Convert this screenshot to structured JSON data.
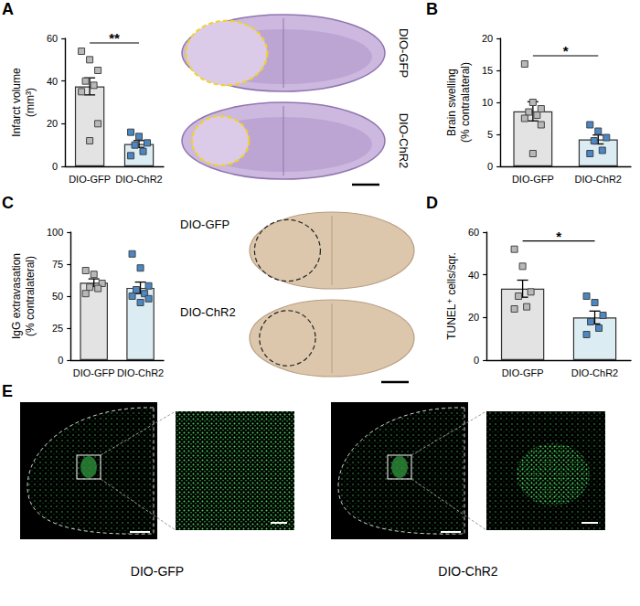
{
  "chart_data": [
    {
      "panel": "A",
      "type": "bar",
      "ylabel": "Infarct volume (mm³)",
      "categories": [
        "DIO-GFP",
        "DIO-ChR2"
      ],
      "values": [
        37.5,
        10.5
      ],
      "errors": [
        4.0,
        1.6
      ],
      "colors": [
        "#e3e3e3",
        "#dcecf3"
      ],
      "points": [
        {
          "values": [
            54,
            50,
            45,
            40,
            38,
            35,
            20,
            12
          ],
          "color": "#b8b8b8",
          "marker": "square"
        },
        {
          "values": [
            16,
            14,
            11,
            10,
            7,
            5
          ],
          "color": "#4a87c4",
          "marker": "square"
        }
      ],
      "ylim": [
        0,
        60
      ],
      "yticks": [
        0,
        20,
        40,
        60
      ],
      "significance": {
        "text": "**",
        "between": [
          "DIO-GFP",
          "DIO-ChR2"
        ]
      },
      "image_labels": [
        "DIO-GFP",
        "DIO-ChR2"
      ]
    },
    {
      "panel": "B",
      "type": "bar",
      "ylabel": "Brain swelling (% contralateral)",
      "categories": [
        "DIO-GFP",
        "DIO-ChR2"
      ],
      "values": [
        8.6,
        4.2
      ],
      "errors": [
        1.5,
        0.7
      ],
      "colors": [
        "#e3e3e3",
        "#dcecf3"
      ],
      "points": [
        {
          "values": [
            16,
            10,
            9,
            8.5,
            8,
            7.5,
            6.5,
            2
          ],
          "color": "#b8b8b8",
          "marker": "square"
        },
        {
          "values": [
            6.5,
            5.5,
            4.5,
            4,
            2.5,
            2
          ],
          "color": "#4a87c4",
          "marker": "square"
        }
      ],
      "ylim": [
        0,
        20
      ],
      "yticks": [
        0,
        5,
        10,
        15,
        20
      ],
      "significance": {
        "text": "*",
        "between": [
          "DIO-GFP",
          "DIO-ChR2"
        ]
      }
    },
    {
      "panel": "C",
      "type": "bar",
      "ylabel": "IgG extravasation (% contralateral)",
      "categories": [
        "DIO-GFP",
        "DIO-ChR2"
      ],
      "values": [
        60.5,
        56.5
      ],
      "errors": [
        3.0,
        4.5
      ],
      "colors": [
        "#e3e3e3",
        "#dcecf3"
      ],
      "points": [
        {
          "values": [
            70,
            67,
            60,
            57,
            56,
            52
          ],
          "color": "#b8b8b8",
          "marker": "square"
        },
        {
          "values": [
            83,
            72,
            58,
            55,
            52,
            50,
            48,
            45
          ],
          "color": "#4a87c4",
          "marker": "square"
        }
      ],
      "ylim": [
        0,
        100
      ],
      "yticks": [
        0,
        25,
        50,
        75,
        100
      ],
      "image_labels": [
        "DIO-GFP",
        "DIO-ChR2"
      ]
    },
    {
      "panel": "D",
      "type": "bar",
      "ylabel": "TUNEL⁺ cells/sqr.",
      "categories": [
        "DIO-GFP",
        "DIO-ChR2"
      ],
      "values": [
        33.5,
        20
      ],
      "errors": [
        4.0,
        3.0
      ],
      "colors": [
        "#e3e3e3",
        "#dcecf3"
      ],
      "points": [
        {
          "values": [
            52,
            44,
            32,
            30,
            25,
            24
          ],
          "color": "#b8b8b8",
          "marker": "square"
        },
        {
          "values": [
            30,
            27,
            21,
            18,
            15,
            12
          ],
          "color": "#4a87c4",
          "marker": "square"
        }
      ],
      "ylim": [
        0,
        60
      ],
      "yticks": [
        0,
        20,
        40,
        60
      ],
      "significance": {
        "text": "*",
        "between": [
          "DIO-GFP",
          "DIO-ChR2"
        ]
      }
    }
  ],
  "panel_E": {
    "panel": "E",
    "labels": [
      "DIO-GFP",
      "DIO-ChR2"
    ]
  }
}
